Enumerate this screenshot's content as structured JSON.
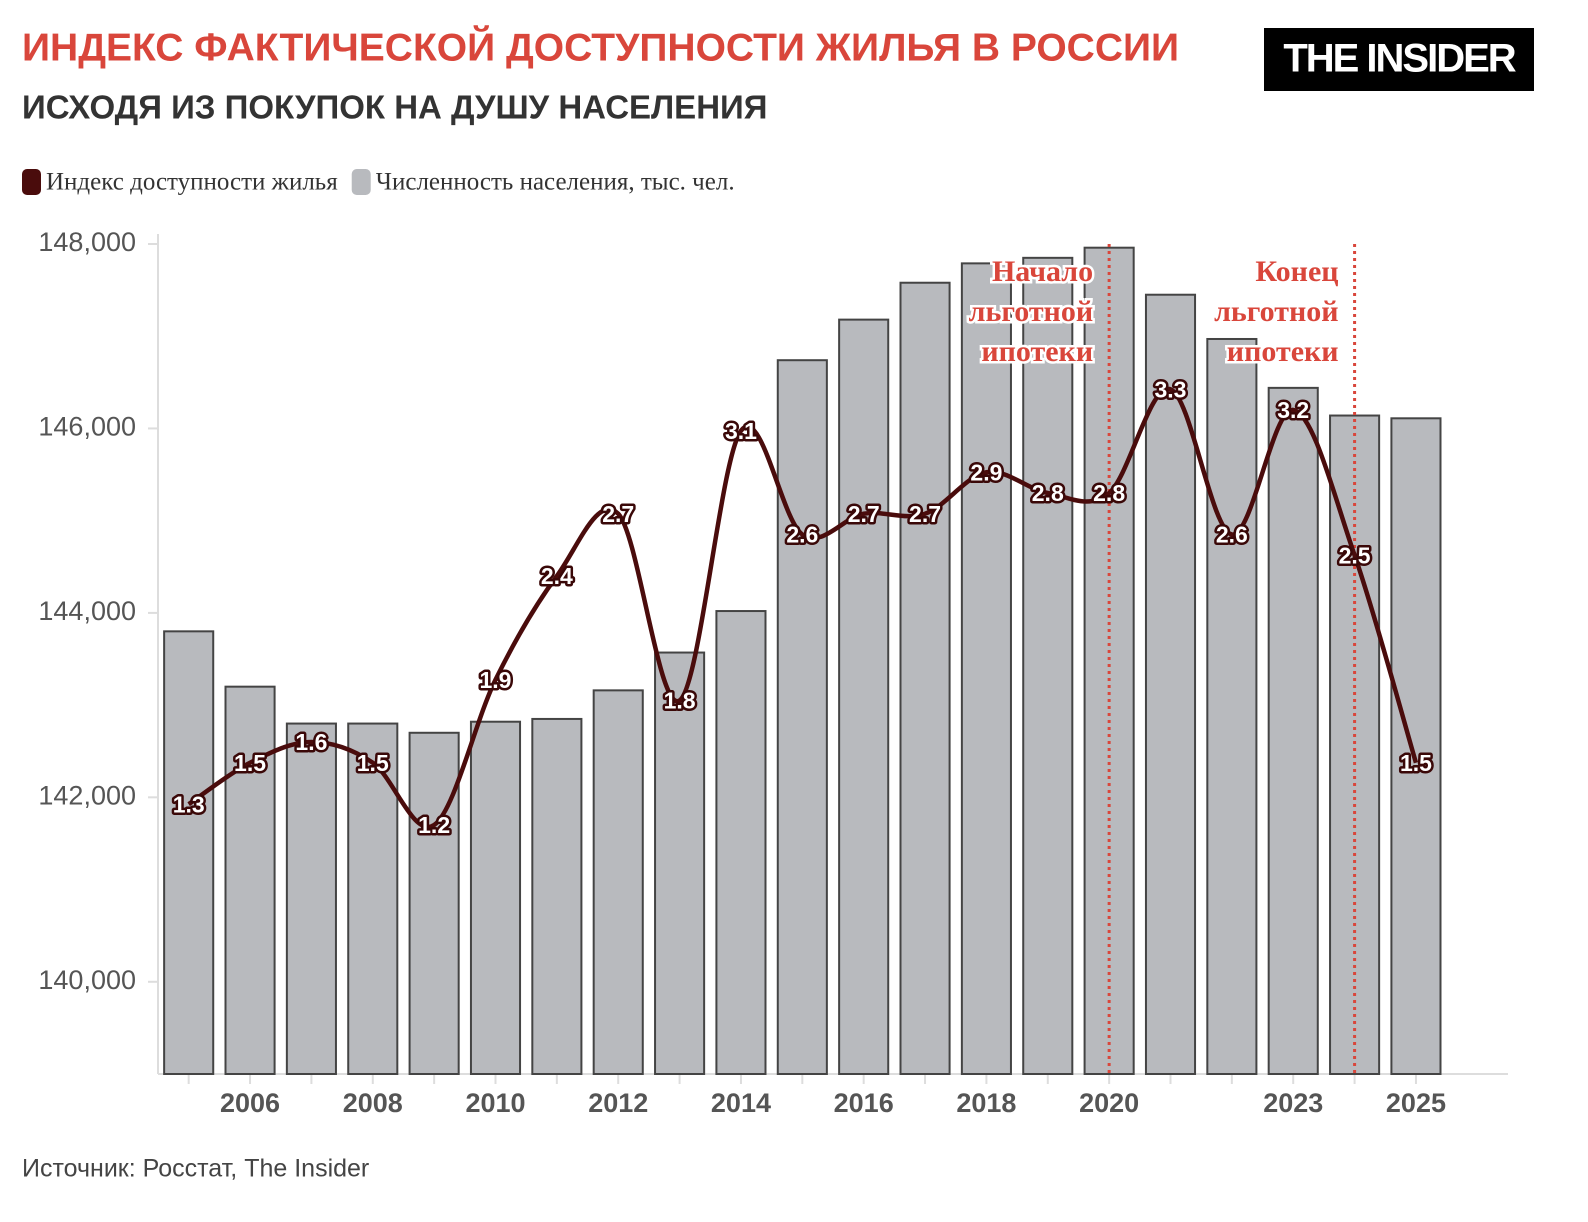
{
  "chart_data": {
    "type": "bar",
    "title": "ИНДЕКС ФАКТИЧЕСКОЙ ДОСТУПНОСТИ ЖИЛЬЯ В РОССИИ",
    "subtitle": "ИСХОДЯ ИЗ ПОКУПОК НА ДУШУ НАСЕЛЕНИЯ",
    "logo": "THE INSIDER",
    "source": "Источник: Росстат, The Insider",
    "x": [
      2005,
      2006,
      2007,
      2008,
      2009,
      2010,
      2011,
      2012,
      2013,
      2014,
      2015,
      2016,
      2017,
      2018,
      2019,
      2020,
      2021,
      2022,
      2023,
      2024,
      2025
    ],
    "xlim": [
      2004.5,
      2026.5
    ],
    "xticks": [
      2006,
      2008,
      2010,
      2012,
      2014,
      2016,
      2018,
      2020,
      2023,
      2025
    ],
    "ylim": [
      139000,
      148000
    ],
    "yticks": [
      {
        "value": 140000,
        "label": "140,000"
      },
      {
        "value": 142000,
        "label": "142,000"
      },
      {
        "value": 144000,
        "label": "144,000"
      },
      {
        "value": 146000,
        "label": "146,000"
      },
      {
        "value": 148000,
        "label": "148,000"
      }
    ],
    "y2lim": [
      0,
      4
    ],
    "series": [
      {
        "name": "Индекс доступности жилья",
        "type": "line",
        "axis": "y2",
        "color": "#4a0c0c",
        "values": [
          1.3,
          1.5,
          1.6,
          1.5,
          1.2,
          1.9,
          2.4,
          2.7,
          1.8,
          3.1,
          2.6,
          2.7,
          2.7,
          2.9,
          2.8,
          2.8,
          3.3,
          2.6,
          3.2,
          2.5,
          1.5
        ]
      },
      {
        "name": "Численность населения, тыс. чел.",
        "type": "bar",
        "color": "#b8babe",
        "values": [
          143800,
          143200,
          142800,
          142800,
          142700,
          142820,
          142850,
          143160,
          143570,
          144020,
          146740,
          147180,
          147580,
          147790,
          147850,
          147960,
          147450,
          146970,
          146440,
          146140,
          146110
        ]
      }
    ],
    "annotations": [
      {
        "x": 2020,
        "lines": [
          "Начало",
          "льготной",
          "ипотеки"
        ]
      },
      {
        "x": 2024,
        "lines": [
          "Конец",
          "льготной",
          "ипотеки"
        ]
      }
    ]
  }
}
